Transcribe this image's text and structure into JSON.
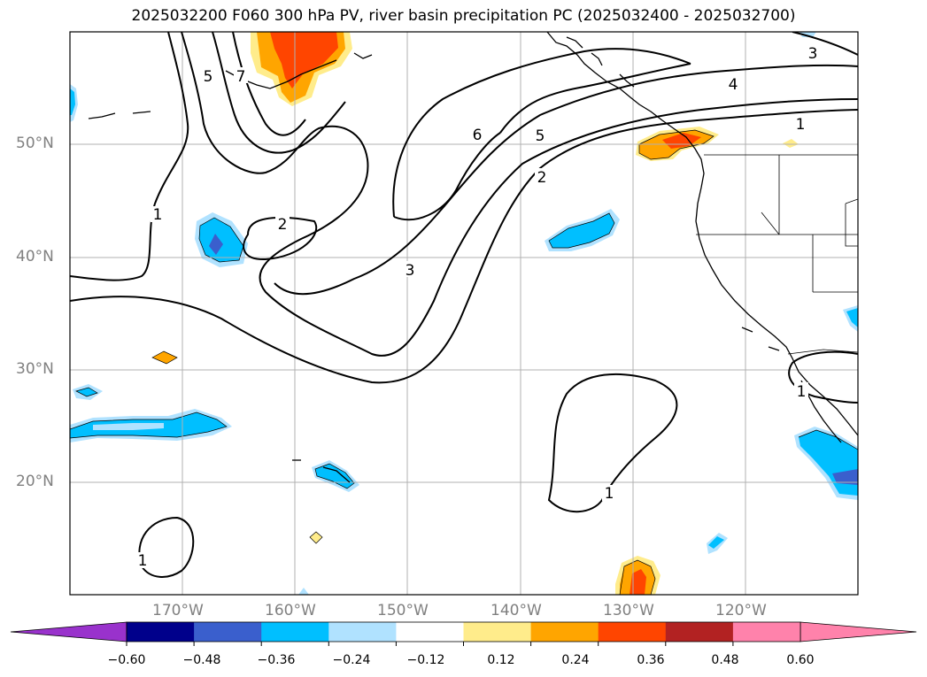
{
  "title": "2025032200 F060 300 hPa PV, river basin precipitation PC (2025032400 - 2025032700)",
  "lat_labels": [
    "50°N",
    "40°N",
    "30°N",
    "20°N"
  ],
  "lon_labels": [
    "170°W",
    "160°W",
    "150°W",
    "140°W",
    "130°W",
    "120°W"
  ],
  "colorbar": {
    "ticks": [
      "−0.60",
      "−0.48",
      "−0.36",
      "−0.24",
      "−0.12",
      "0.12",
      "0.24",
      "0.36",
      "0.48",
      "0.60"
    ],
    "colors": [
      "#9932cc",
      "#00008b",
      "#3a5fcd",
      "#00bfff",
      "#b0e2ff",
      "#ffffff",
      "#ffec8b",
      "#ffa500",
      "#ff4500",
      "#b22222",
      "#ff82ab"
    ]
  },
  "contour_labels": [
    "5",
    "7",
    "1",
    "2",
    "6",
    "5",
    "4",
    "3",
    "2",
    "3",
    "1",
    "1",
    "1",
    "1"
  ]
}
